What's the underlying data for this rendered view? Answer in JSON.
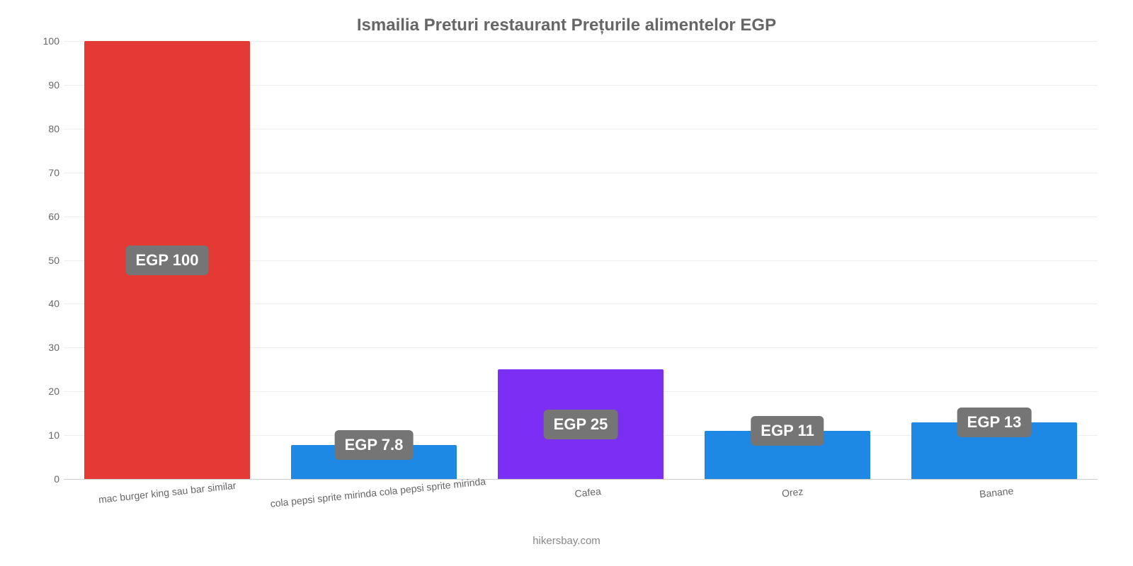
{
  "chart": {
    "type": "bar",
    "title": "Ismailia Preturi restaurant Prețurile alimentelor EGP",
    "title_fontsize": 24,
    "title_color": "#666666",
    "background_color": "#ffffff",
    "grid_color": "#efeeee",
    "axis_color": "#cccccc",
    "tick_color": "#666666",
    "tick_fontsize": 14,
    "data_label_bg": "#757575",
    "data_label_color": "#ffffff",
    "data_label_fontsize": 22,
    "bar_border_radius": 2,
    "ylim": [
      0,
      100
    ],
    "ytick_step": 10,
    "yticks": [
      0,
      10,
      20,
      30,
      40,
      50,
      60,
      70,
      80,
      90,
      100
    ],
    "bar_width_pct": 80,
    "categories": [
      "mac burger king sau bar similar",
      "cola pepsi sprite mirinda cola pepsi sprite mirinda",
      "Cafea",
      "Orez",
      "Banane"
    ],
    "values": [
      100,
      7.8,
      25,
      11,
      13
    ],
    "value_labels": [
      "EGP 100",
      "EGP 7.8",
      "EGP 25",
      "EGP 11",
      "EGP 13"
    ],
    "bar_colors": [
      "#e53935",
      "#1e88e5",
      "#7b2ff2",
      "#1e88e5",
      "#1e88e5"
    ],
    "label_positions": [
      "middle",
      "top",
      "middle",
      "top",
      "top"
    ],
    "x_label_rotate_deg": -6,
    "footer": "hikersbay.com",
    "footer_color": "#888888",
    "footer_fontsize": 15
  }
}
